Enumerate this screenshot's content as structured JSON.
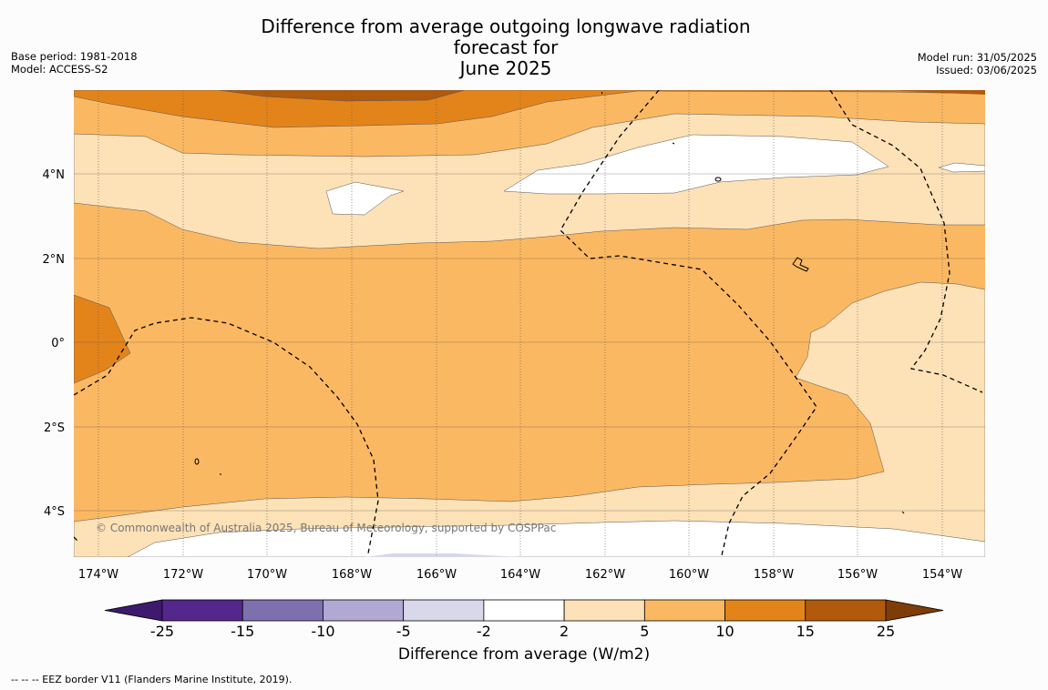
{
  "title_line1": "Difference from average outgoing longwave radiation forecast for",
  "title_line2": "June 2025",
  "base_period": "Base period: 1981-2018",
  "model": "Model: ACCESS-S2",
  "model_run": "Model run: 31/05/2025",
  "issued": "Issued: 03/06/2025",
  "copyright": "© Commonwealth of Australia 2025, Bureau of Meteorology, supported by COSPPac",
  "lon_labels": [
    "174°W",
    "172°W",
    "170°W",
    "168°W",
    "166°W",
    "164°W",
    "162°W",
    "160°W",
    "158°W",
    "156°W",
    "154°W"
  ],
  "lat_labels": [
    "4°N",
    "2°N",
    "0°",
    "2°S",
    "4°S"
  ],
  "colorbar": {
    "label": "Difference from average (W/m2)",
    "ticks": [
      "-25",
      "-15",
      "-10",
      "-5",
      "-2",
      "2",
      "5",
      "10",
      "15",
      "25"
    ],
    "colors": [
      "#3d1a6e",
      "#53278c",
      "#7e70ae",
      "#b1a9d3",
      "#d8d8ea",
      "#ffffff",
      "#fde1b7",
      "#fbb862",
      "#e3841a",
      "#b25a0b",
      "#7e3d06"
    ]
  },
  "footer": "--  --  -- EEZ border V11 (Flanders Marine Institute, 2019)."
}
